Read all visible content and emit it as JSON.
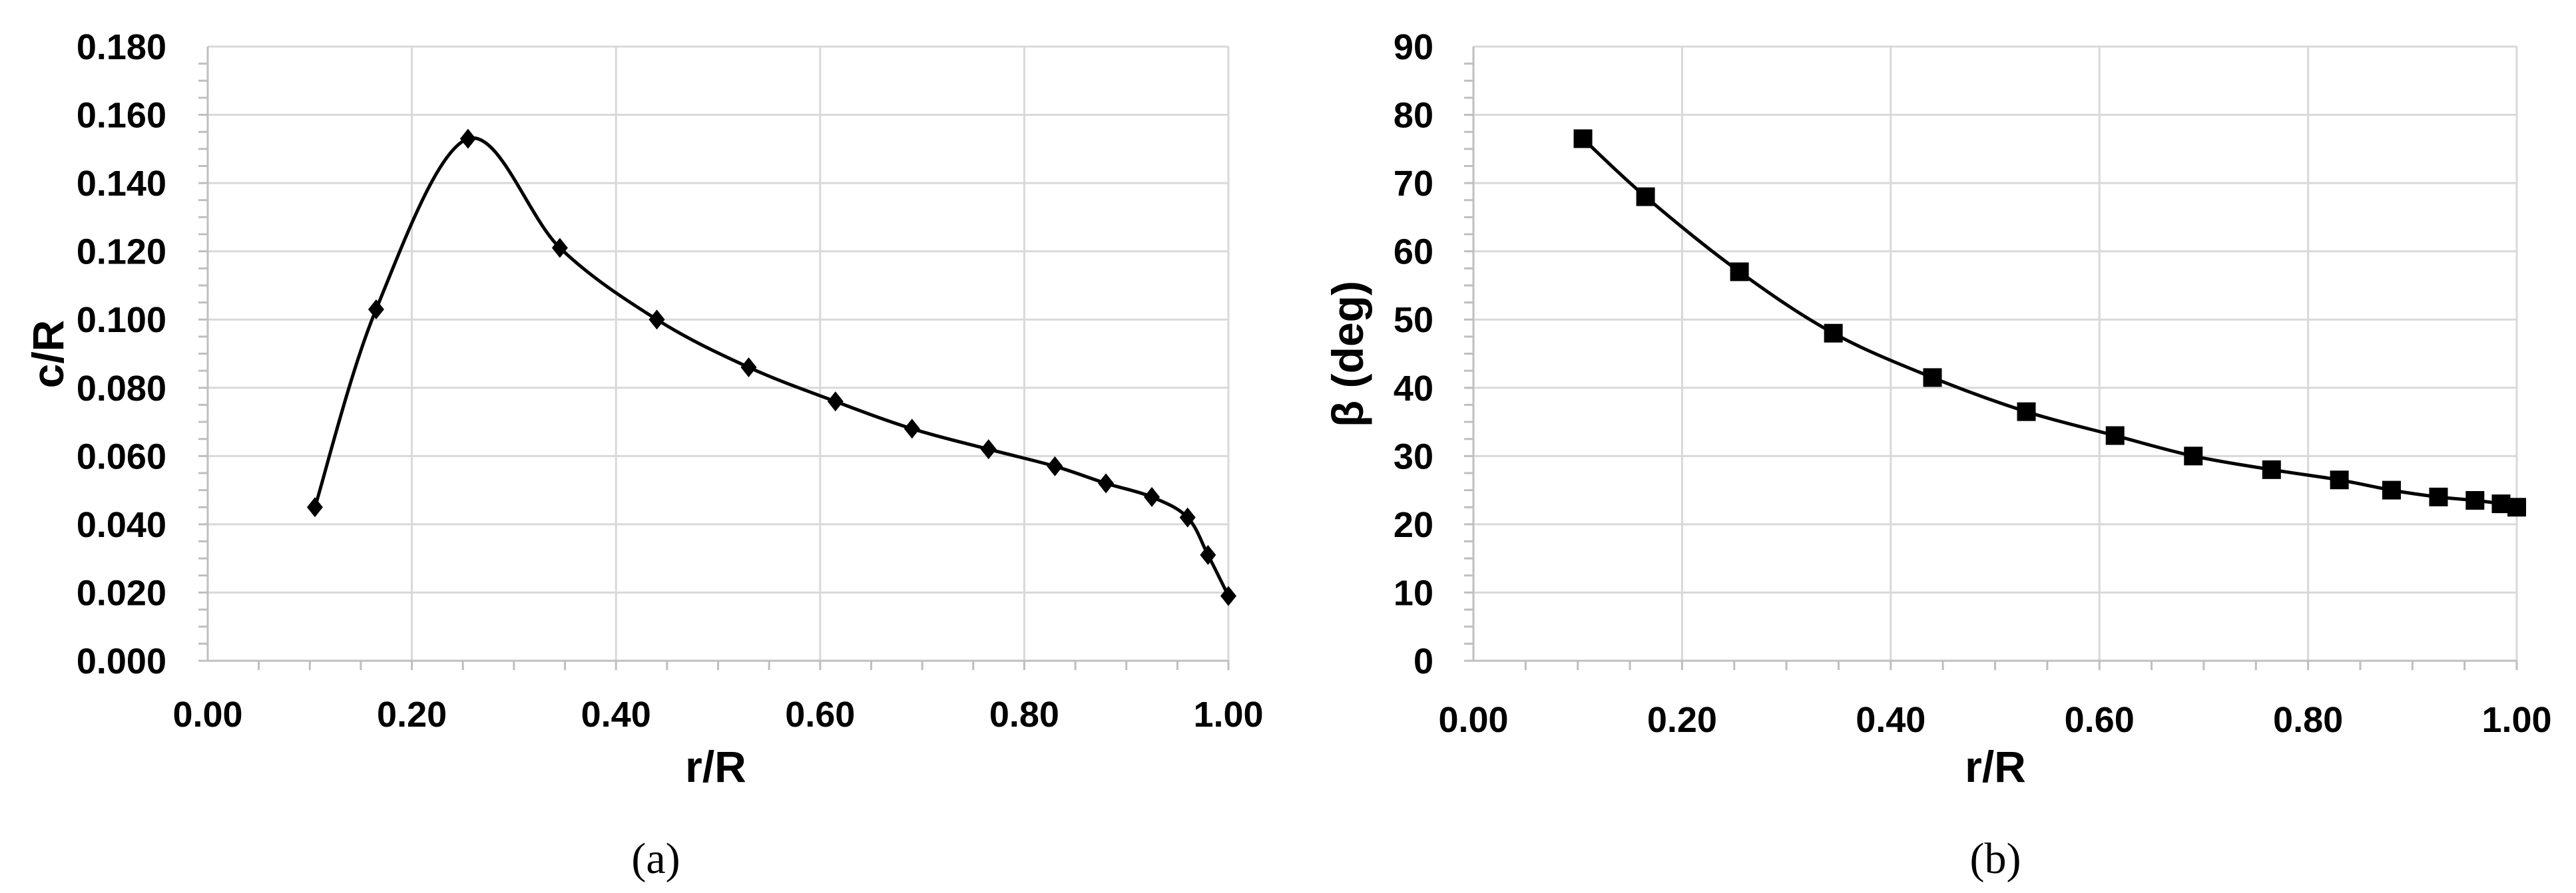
{
  "chart_data": [
    {
      "type": "line",
      "caption": "(a)",
      "xlabel": "r/R",
      "ylabel": "c/R",
      "xlim": [
        0,
        1
      ],
      "ylim": [
        0,
        0.18
      ],
      "x_ticks": [
        "0.00",
        "0.20",
        "0.40",
        "0.60",
        "0.80",
        "1.00"
      ],
      "y_ticks": [
        "0.000",
        "0.020",
        "0.040",
        "0.060",
        "0.080",
        "0.100",
        "0.120",
        "0.140",
        "0.160",
        "0.180"
      ],
      "grid": true,
      "marker": "diamond",
      "series": [
        {
          "x": [
            0.105,
            0.165,
            0.255,
            0.345,
            0.44,
            0.53,
            0.615,
            0.69,
            0.765,
            0.83,
            0.88,
            0.925,
            0.96,
            0.98,
            1.0
          ],
          "values": [
            0.045,
            0.103,
            0.153,
            0.121,
            0.1,
            0.086,
            0.076,
            0.068,
            0.062,
            0.057,
            0.052,
            0.048,
            0.042,
            0.031,
            0.019
          ]
        }
      ]
    },
    {
      "type": "line",
      "caption": "(b)",
      "xlabel": "r/R",
      "ylabel": "β (deg)",
      "xlim": [
        0,
        1
      ],
      "ylim": [
        0,
        90
      ],
      "x_ticks": [
        "0.00",
        "0.20",
        "0.40",
        "0.60",
        "0.80",
        "1.00"
      ],
      "y_ticks": [
        "0",
        "10",
        "20",
        "30",
        "40",
        "50",
        "60",
        "70",
        "80",
        "90"
      ],
      "grid": true,
      "marker": "square",
      "series": [
        {
          "x": [
            0.105,
            0.165,
            0.255,
            0.345,
            0.44,
            0.53,
            0.615,
            0.69,
            0.765,
            0.83,
            0.88,
            0.925,
            0.96,
            0.985,
            1.0
          ],
          "values": [
            76.5,
            68,
            57,
            48,
            41.5,
            36.5,
            33,
            30,
            28,
            26.5,
            25,
            24,
            23.5,
            23,
            22.5
          ]
        }
      ]
    }
  ]
}
